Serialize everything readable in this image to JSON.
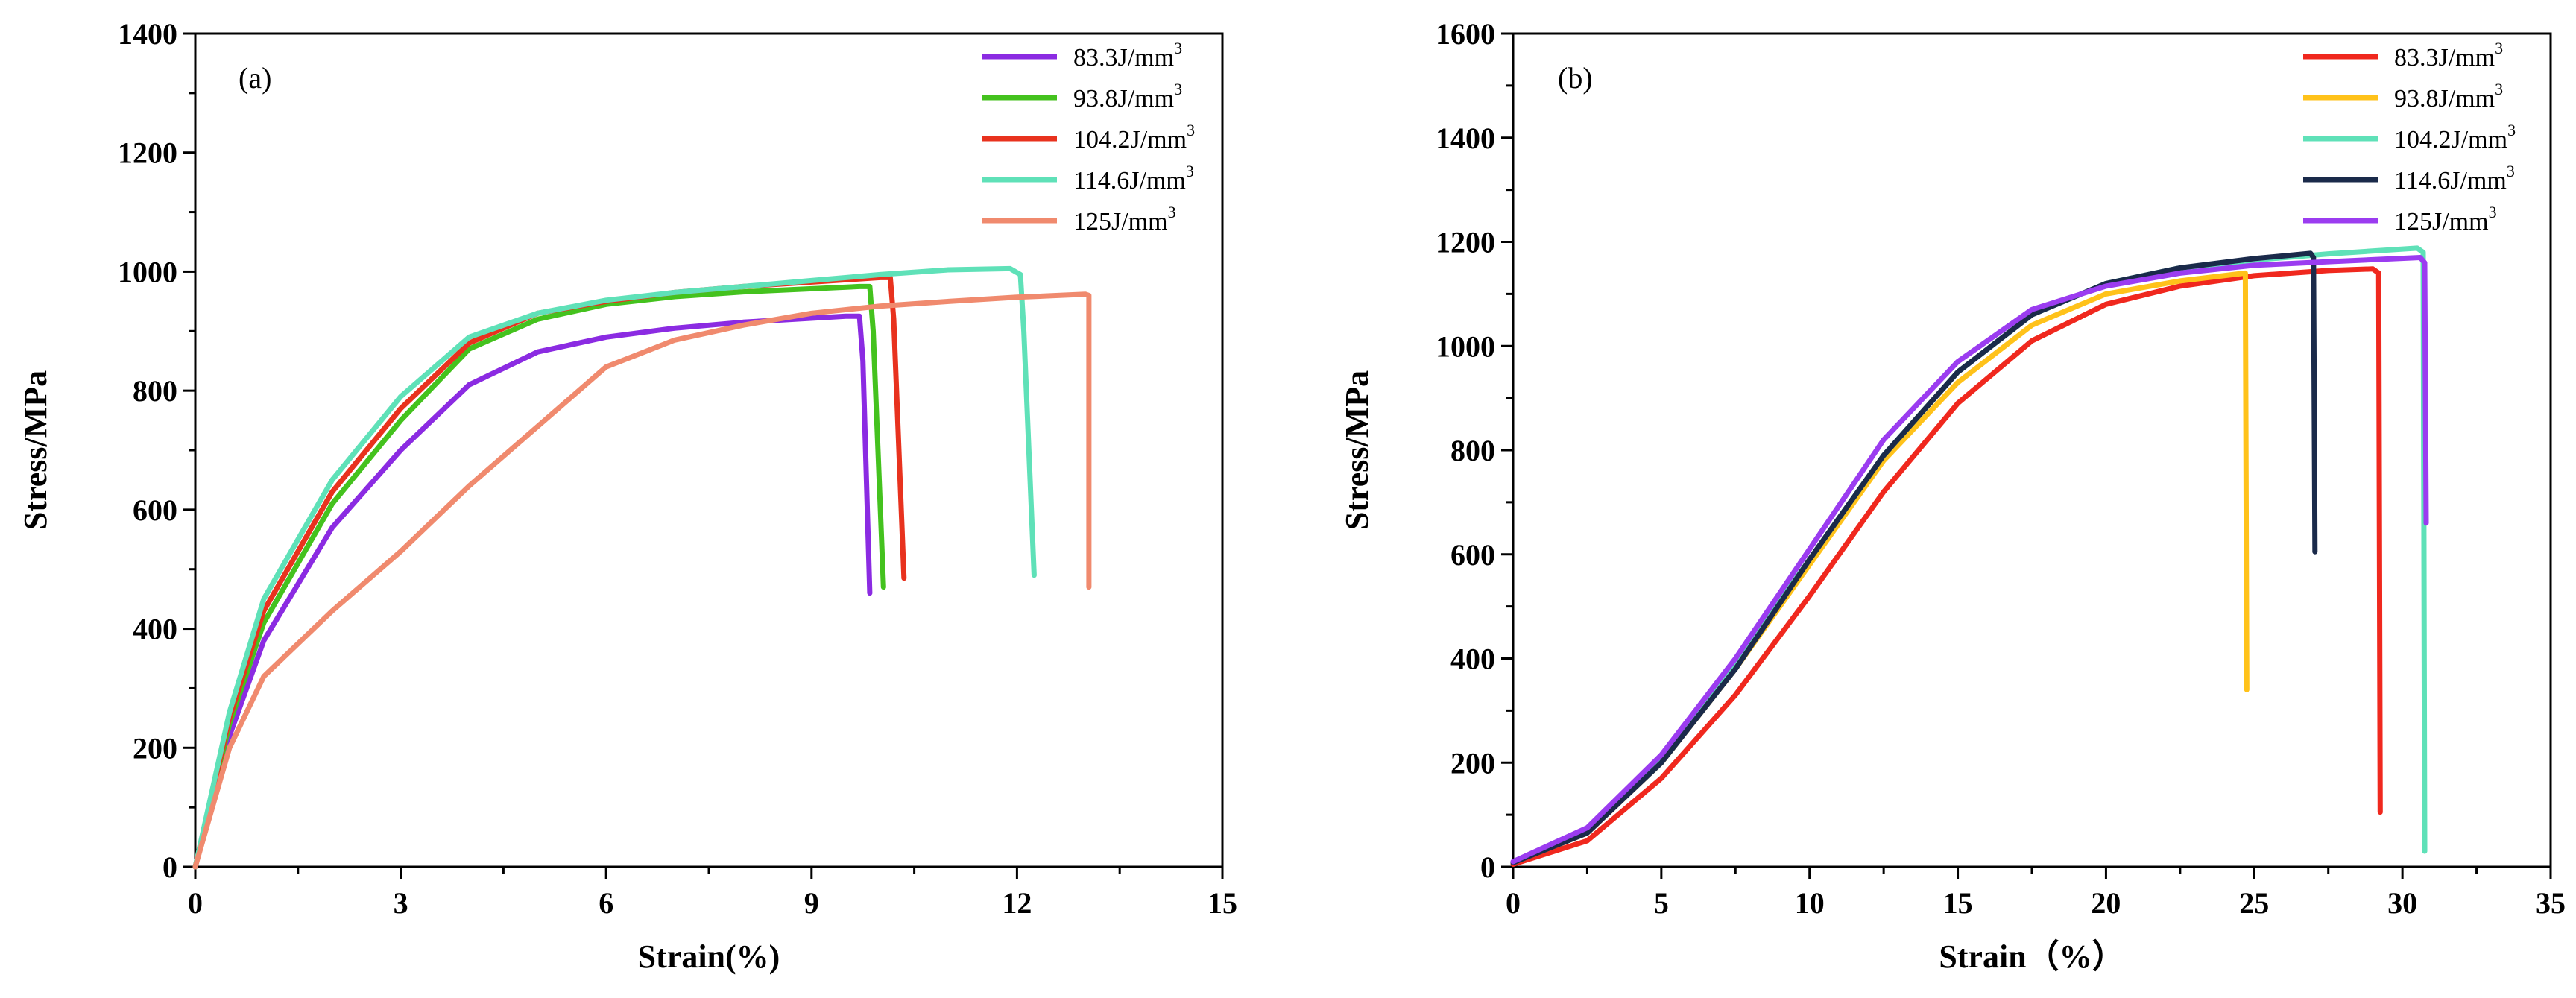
{
  "chart_data": [
    {
      "type": "line",
      "panel_label": "(a)",
      "xlabel": "Strain(%)",
      "ylabel": "Stress/MPa",
      "xlim": [
        0,
        15
      ],
      "ylim": [
        0,
        1400
      ],
      "xticks": [
        0,
        3,
        6,
        9,
        12,
        15
      ],
      "yticks": [
        0,
        200,
        400,
        600,
        800,
        1000,
        1200,
        1400
      ],
      "legend_position": "top-right",
      "series": [
        {
          "name": "83.3J/mm",
          "sup": "3",
          "color": "#8B2BE2",
          "points": [
            [
              0,
              0
            ],
            [
              0.5,
              220
            ],
            [
              1,
              380
            ],
            [
              2,
              570
            ],
            [
              3,
              700
            ],
            [
              4,
              810
            ],
            [
              5,
              865
            ],
            [
              6,
              890
            ],
            [
              7,
              905
            ],
            [
              8,
              915
            ],
            [
              9.5,
              925
            ],
            [
              9.7,
              925
            ],
            [
              9.75,
              850
            ],
            [
              9.85,
              460
            ]
          ]
        },
        {
          "name": "93.8J/mm",
          "sup": "3",
          "color": "#44C21E",
          "points": [
            [
              0,
              0
            ],
            [
              0.5,
              240
            ],
            [
              1,
              410
            ],
            [
              2,
              610
            ],
            [
              3,
              750
            ],
            [
              4,
              870
            ],
            [
              5,
              920
            ],
            [
              6,
              945
            ],
            [
              7,
              958
            ],
            [
              8,
              966
            ],
            [
              9.7,
              975
            ],
            [
              9.85,
              975
            ],
            [
              9.9,
              900
            ],
            [
              10.05,
              470
            ]
          ]
        },
        {
          "name": "104.2J/mm",
          "sup": "3",
          "color": "#E8321E",
          "points": [
            [
              0,
              0
            ],
            [
              0.5,
              250
            ],
            [
              1,
              430
            ],
            [
              2,
              630
            ],
            [
              3,
              770
            ],
            [
              4,
              880
            ],
            [
              5,
              930
            ],
            [
              6,
              950
            ],
            [
              7,
              965
            ],
            [
              8,
              975
            ],
            [
              10,
              990
            ],
            [
              10.15,
              990
            ],
            [
              10.2,
              920
            ],
            [
              10.35,
              485
            ]
          ]
        },
        {
          "name": "114.6J/mm",
          "sup": "3",
          "color": "#5FE1B8",
          "points": [
            [
              0,
              0
            ],
            [
              0.5,
              260
            ],
            [
              1,
              450
            ],
            [
              2,
              650
            ],
            [
              3,
              790
            ],
            [
              4,
              890
            ],
            [
              5,
              930
            ],
            [
              6,
              952
            ],
            [
              7,
              965
            ],
            [
              8,
              975
            ],
            [
              9,
              985
            ],
            [
              10,
              995
            ],
            [
              11,
              1003
            ],
            [
              11.9,
              1005
            ],
            [
              12.05,
              995
            ],
            [
              12.1,
              900
            ],
            [
              12.25,
              490
            ]
          ]
        },
        {
          "name": "125J/mm",
          "sup": "3",
          "color": "#F08A6E",
          "points": [
            [
              0,
              0
            ],
            [
              0.5,
              200
            ],
            [
              1,
              320
            ],
            [
              2,
              430
            ],
            [
              3,
              530
            ],
            [
              4,
              640
            ],
            [
              5,
              740
            ],
            [
              6,
              840
            ],
            [
              7,
              885
            ],
            [
              8,
              910
            ],
            [
              9,
              930
            ],
            [
              10,
              942
            ],
            [
              11,
              950
            ],
            [
              12,
              957
            ],
            [
              13,
              962
            ],
            [
              13.05,
              960
            ],
            [
              13.05,
              470
            ]
          ]
        }
      ]
    },
    {
      "type": "line",
      "panel_label": "(b)",
      "xlabel": "Strain（%）",
      "ylabel": "Stress/MPa",
      "xlim": [
        0,
        35
      ],
      "ylim": [
        0,
        1600
      ],
      "xticks": [
        0,
        5,
        10,
        15,
        20,
        25,
        30,
        35
      ],
      "yticks": [
        0,
        200,
        400,
        600,
        800,
        1000,
        1200,
        1400,
        1600
      ],
      "legend_position": "top-right",
      "series": [
        {
          "name": "83.3J/mm",
          "sup": "3",
          "color": "#F0281E",
          "points": [
            [
              0,
              5
            ],
            [
              2.5,
              50
            ],
            [
              5,
              170
            ],
            [
              7.5,
              330
            ],
            [
              10,
              520
            ],
            [
              12.5,
              720
            ],
            [
              15,
              890
            ],
            [
              17.5,
              1010
            ],
            [
              20,
              1080
            ],
            [
              22.5,
              1115
            ],
            [
              25,
              1135
            ],
            [
              27.5,
              1145
            ],
            [
              29,
              1148
            ],
            [
              29.2,
              1140
            ],
            [
              29.25,
              105
            ]
          ]
        },
        {
          "name": "93.8J/mm",
          "sup": "3",
          "color": "#FFC21A",
          "points": [
            [
              0,
              8
            ],
            [
              2.5,
              65
            ],
            [
              5,
              200
            ],
            [
              7.5,
              380
            ],
            [
              10,
              580
            ],
            [
              12.5,
              780
            ],
            [
              15,
              930
            ],
            [
              17.5,
              1040
            ],
            [
              20,
              1100
            ],
            [
              22.5,
              1125
            ],
            [
              24.7,
              1140
            ],
            [
              24.75,
              340
            ]
          ]
        },
        {
          "name": "104.2J/mm",
          "sup": "3",
          "color": "#5FE1B8",
          "points": [
            [
              0,
              8
            ],
            [
              2.5,
              70
            ],
            [
              5,
              210
            ],
            [
              7.5,
              390
            ],
            [
              10,
              590
            ],
            [
              12.5,
              790
            ],
            [
              15,
              950
            ],
            [
              17.5,
              1060
            ],
            [
              20,
              1120
            ],
            [
              22.5,
              1150
            ],
            [
              25,
              1165
            ],
            [
              27.5,
              1177
            ],
            [
              30.5,
              1188
            ],
            [
              30.7,
              1180
            ],
            [
              30.75,
              30
            ]
          ]
        },
        {
          "name": "114.6J/mm",
          "sup": "3",
          "color": "#1A2A4A",
          "points": [
            [
              0,
              8
            ],
            [
              2.5,
              65
            ],
            [
              5,
              200
            ],
            [
              7.5,
              380
            ],
            [
              10,
              590
            ],
            [
              12.5,
              790
            ],
            [
              15,
              950
            ],
            [
              17.5,
              1060
            ],
            [
              20,
              1120
            ],
            [
              22.5,
              1150
            ],
            [
              25,
              1168
            ],
            [
              26.9,
              1178
            ],
            [
              27,
              1170
            ],
            [
              27.05,
              605
            ]
          ]
        },
        {
          "name": "125J/mm",
          "sup": "3",
          "color": "#9B3CF0",
          "points": [
            [
              0,
              10
            ],
            [
              2.5,
              75
            ],
            [
              5,
              215
            ],
            [
              7.5,
              400
            ],
            [
              10,
              610
            ],
            [
              12.5,
              820
            ],
            [
              15,
              970
            ],
            [
              17.5,
              1070
            ],
            [
              20,
              1115
            ],
            [
              22.5,
              1140
            ],
            [
              25,
              1155
            ],
            [
              27.5,
              1162
            ],
            [
              30.6,
              1170
            ],
            [
              30.75,
              1160
            ],
            [
              30.8,
              660
            ]
          ]
        }
      ]
    }
  ]
}
